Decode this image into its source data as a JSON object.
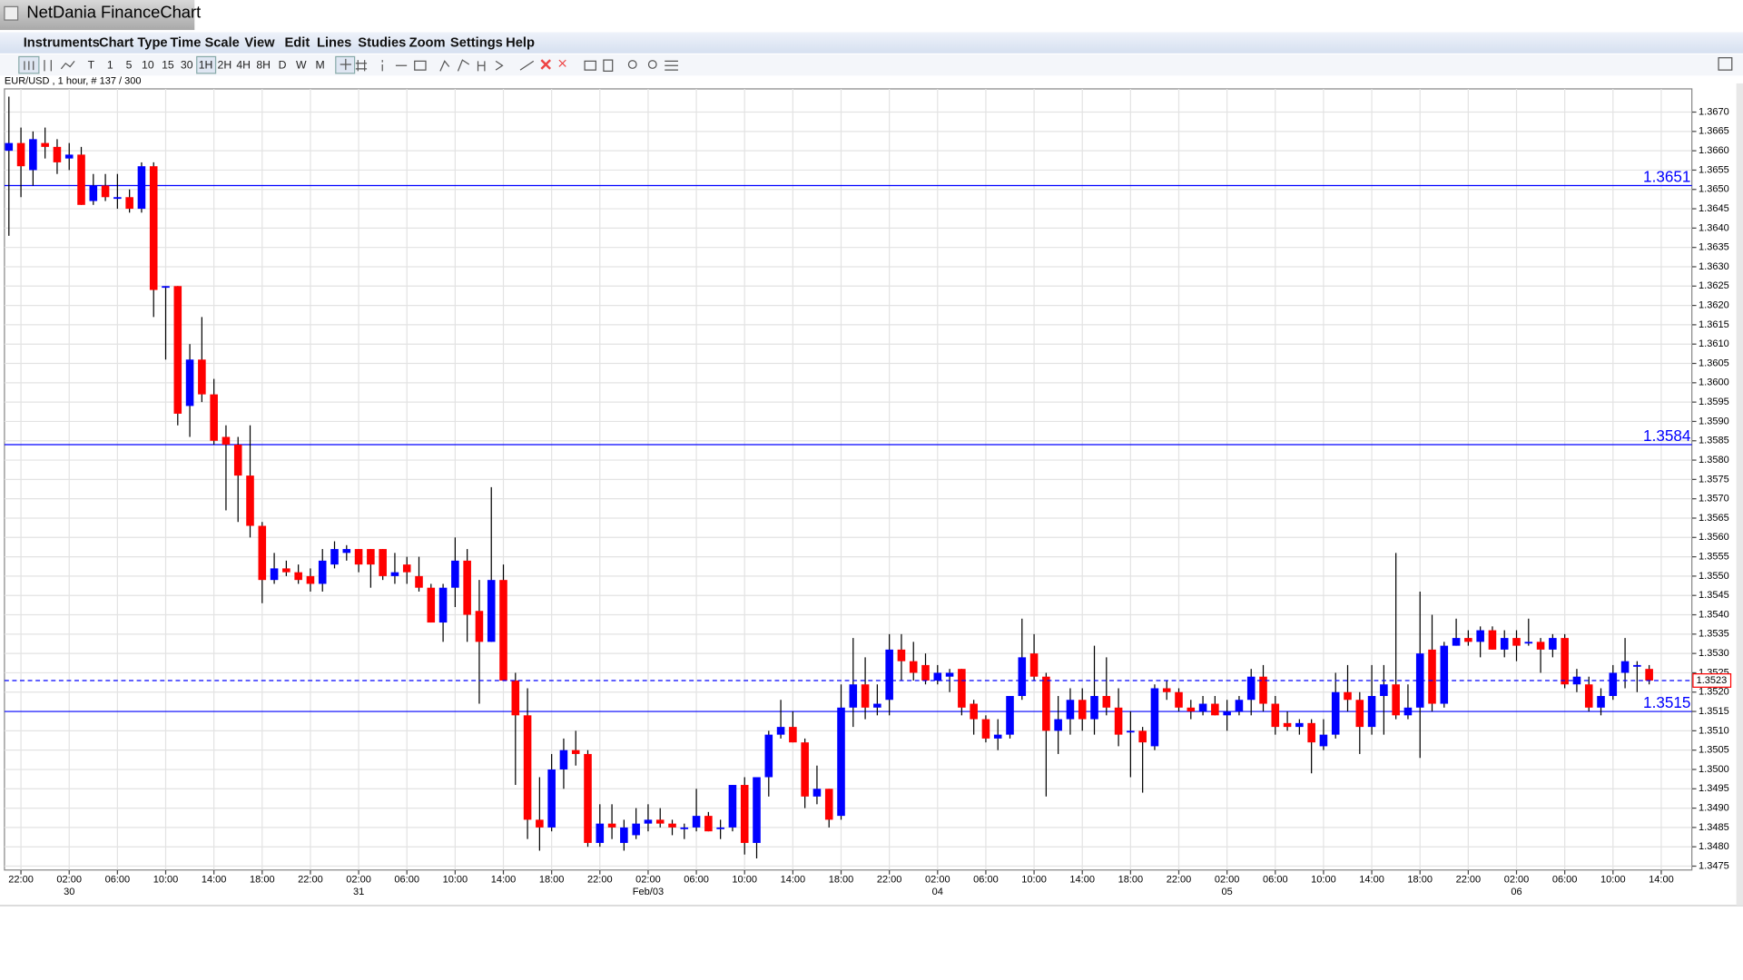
{
  "header": {
    "title": "NetDania FinanceChart"
  },
  "menu": [
    "Instruments",
    "Chart Type",
    "Time Scale",
    "View",
    "Edit",
    "Lines",
    "Studies",
    "Zoom",
    "Settings",
    "Help"
  ],
  "toolbar": {
    "periods": [
      "T",
      "1",
      "5",
      "10",
      "15",
      "30",
      "1H",
      "2H",
      "4H",
      "8H",
      "D",
      "W",
      "M"
    ]
  },
  "chart_data": {
    "type": "candlestick",
    "subtitle": "EUR/USD , 1 hour, # 137 / 300",
    "categories": [
      null,
      "22:00",
      null,
      null,
      null,
      "02:00",
      null,
      null,
      null,
      "06:00",
      null,
      null,
      null,
      "10:00",
      null,
      null,
      null,
      "14:00",
      null,
      null,
      null,
      "18:00",
      null,
      null,
      null,
      "22:00",
      null,
      null,
      null,
      "02:00",
      null,
      null,
      null,
      "06:00",
      null,
      null,
      null,
      "10:00",
      null,
      null,
      null,
      "14:00",
      null,
      null,
      null,
      "18:00",
      null,
      null,
      null,
      "22:00",
      null,
      null,
      null,
      "02:00",
      null,
      null,
      null,
      "06:00",
      null,
      null,
      null,
      "10:00",
      null,
      null,
      null,
      "14:00",
      null,
      null,
      null,
      "18:00",
      null,
      null,
      null,
      "22:00",
      null,
      null,
      null,
      "02:00",
      null,
      null,
      null,
      "06:00",
      null,
      null,
      null,
      "10:00",
      null,
      null,
      null,
      "14:00",
      null,
      null,
      null,
      "18:00",
      null,
      null,
      null,
      "22:00",
      null,
      null,
      null,
      "02:00",
      null,
      null,
      null,
      "06:00",
      null,
      null,
      null,
      "10:00",
      null,
      null,
      null,
      "14:00",
      null,
      null,
      null,
      "18:00",
      null,
      null,
      null,
      "22:00",
      null,
      null,
      null,
      "02:00",
      null,
      null,
      null,
      "06:00",
      null,
      null,
      null,
      "10:00",
      null,
      null,
      null,
      "14:00"
    ],
    "date_labels": [
      null,
      null,
      null,
      null,
      null,
      "30",
      null,
      null,
      null,
      null,
      null,
      null,
      null,
      null,
      null,
      null,
      null,
      null,
      null,
      null,
      null,
      null,
      null,
      null,
      null,
      null,
      null,
      null,
      null,
      "31",
      null,
      null,
      null,
      null,
      null,
      null,
      null,
      null,
      null,
      null,
      null,
      null,
      null,
      null,
      null,
      null,
      null,
      null,
      null,
      null,
      null,
      null,
      null,
      "Feb/03",
      null,
      null,
      null,
      null,
      null,
      null,
      null,
      null,
      null,
      null,
      null,
      null,
      null,
      null,
      null,
      null,
      null,
      null,
      null,
      null,
      null,
      null,
      null,
      "04",
      null,
      null,
      null,
      null,
      null,
      null,
      null,
      null,
      null,
      null,
      null,
      null,
      null,
      null,
      null,
      null,
      null,
      null,
      null,
      null,
      null,
      null,
      null,
      "05",
      null,
      null,
      null,
      null,
      null,
      null,
      null,
      null,
      null,
      null,
      null,
      null,
      null,
      null,
      null,
      null,
      null,
      null,
      null,
      null,
      null,
      null,
      null,
      "06",
      null,
      null,
      null,
      null,
      null,
      null,
      null,
      null,
      null,
      null,
      null,
      null
    ],
    "open": [
      1.366,
      1.3662,
      1.3655,
      1.3662,
      1.3661,
      1.3658,
      1.3659,
      1.3647,
      1.3651,
      1.3648,
      1.3648,
      1.3645,
      1.3656,
      1.3625,
      1.3625,
      1.3594,
      1.3606,
      1.3597,
      1.3586,
      1.3584,
      1.3576,
      1.3563,
      1.3549,
      1.3552,
      1.3551,
      1.355,
      1.3548,
      1.3553,
      1.3556,
      1.3557,
      1.3557,
      1.3557,
      1.355,
      1.3553,
      1.355,
      1.3547,
      1.3538,
      1.3547,
      1.3554,
      1.3541,
      1.3533,
      1.3549,
      1.3523,
      1.3514,
      1.3487,
      1.3485,
      1.35,
      1.3505,
      1.3504,
      1.3481,
      1.3486,
      1.3481,
      1.3483,
      1.3486,
      1.3487,
      1.3486,
      1.3485,
      1.3485,
      1.3488,
      1.3485,
      1.3485,
      1.3496,
      1.3481,
      1.3498,
      1.3509,
      1.3511,
      1.3507,
      1.3493,
      1.3495,
      1.3488,
      1.3516,
      1.3522,
      1.3516,
      1.3518,
      1.3531,
      1.3528,
      1.3527,
      1.3523,
      1.3524,
      1.3526,
      1.3517,
      1.3513,
      1.3508,
      1.3509,
      1.3519,
      1.353,
      1.3524,
      1.351,
      1.3513,
      1.3518,
      1.3513,
      1.3519,
      1.3516,
      1.351,
      1.351,
      1.3506,
      1.3521,
      1.352,
      1.3516,
      1.3515,
      1.3517,
      1.3514,
      1.3515,
      1.3518,
      1.3524,
      1.3517,
      1.3512,
      1.3511,
      1.3512,
      1.3506,
      1.3509,
      1.352,
      1.3518,
      1.3511,
      1.3519,
      1.3522,
      1.3514,
      1.3516,
      1.3531,
      1.3517,
      1.3532,
      1.3534,
      1.3533,
      1.3536,
      1.3531,
      1.3534,
      1.3533,
      1.3533,
      1.3531,
      1.3534,
      1.3522,
      1.3522,
      1.3516,
      1.3519,
      1.3525,
      1.3527,
      1.3526,
      null
    ],
    "high": [
      1.3674,
      1.3666,
      1.3665,
      1.3666,
      1.3663,
      1.3662,
      1.3661,
      1.3654,
      1.3654,
      1.3654,
      1.365,
      1.3657,
      1.3657,
      1.3625,
      1.3625,
      1.361,
      1.3617,
      1.3601,
      1.3589,
      1.3586,
      1.3589,
      1.3564,
      1.3556,
      1.3554,
      1.3553,
      1.3552,
      1.3557,
      1.3559,
      1.3558,
      1.3557,
      1.3557,
      1.3557,
      1.3556,
      1.3555,
      1.3555,
      1.3548,
      1.3548,
      1.356,
      1.3557,
      1.3549,
      1.3573,
      1.3553,
      1.3525,
      1.3521,
      1.3498,
      1.3504,
      1.3508,
      1.351,
      1.3505,
      1.3491,
      1.3491,
      1.3487,
      1.349,
      1.3491,
      1.349,
      1.3487,
      1.3486,
      1.3495,
      1.3489,
      1.3487,
      1.3496,
      1.3498,
      1.3498,
      1.351,
      1.3518,
      1.3515,
      1.3508,
      1.3501,
      1.3495,
      1.3522,
      1.3534,
      1.3529,
      1.3522,
      1.3535,
      1.3535,
      1.3533,
      1.353,
      1.3527,
      1.3526,
      1.3526,
      1.3518,
      1.3514,
      1.3513,
      1.3519,
      1.3539,
      1.3535,
      1.3525,
      1.3519,
      1.3521,
      1.3521,
      1.3532,
      1.3529,
      1.3521,
      1.3515,
      1.3511,
      1.3522,
      1.3523,
      1.3521,
      1.3518,
      1.3519,
      1.3519,
      1.3518,
      1.3519,
      1.3526,
      1.3527,
      1.3519,
      1.3515,
      1.3513,
      1.3513,
      1.3513,
      1.3525,
      1.3527,
      1.352,
      1.3527,
      1.3527,
      1.3556,
      1.3522,
      1.3546,
      1.354,
      1.3533,
      1.3539,
      1.3536,
      1.3537,
      1.3537,
      1.3536,
      1.3536,
      1.3539,
      1.3534,
      1.3535,
      1.3535,
      1.3526,
      1.3524,
      1.3521,
      1.3527,
      1.3534,
      1.3528,
      1.3527,
      null
    ],
    "low": [
      1.3638,
      1.3648,
      1.3651,
      1.3658,
      1.3654,
      1.3655,
      1.3646,
      1.3646,
      1.3647,
      1.3645,
      1.3644,
      1.3644,
      1.3617,
      1.3606,
      1.3589,
      1.3586,
      1.3595,
      1.3584,
      1.3567,
      1.3564,
      1.356,
      1.3543,
      1.3548,
      1.355,
      1.3548,
      1.3546,
      1.3546,
      1.3552,
      1.3554,
      1.3551,
      1.3547,
      1.3549,
      1.3548,
      1.3548,
      1.3546,
      1.3538,
      1.3533,
      1.3542,
      1.3533,
      1.3517,
      1.3533,
      1.3523,
      1.3496,
      1.3482,
      1.3479,
      1.3484,
      1.3495,
      1.3501,
      1.348,
      1.348,
      1.3482,
      1.3479,
      1.3482,
      1.3484,
      1.3485,
      1.3483,
      1.3482,
      1.3484,
      1.3484,
      1.3482,
      1.3484,
      1.3478,
      1.3477,
      1.3493,
      1.3508,
      1.3507,
      1.349,
      1.3491,
      1.3485,
      1.3487,
      1.3511,
      1.3513,
      1.3514,
      1.3514,
      1.3523,
      1.3523,
      1.3522,
      1.3522,
      1.352,
      1.3514,
      1.3509,
      1.3507,
      1.3505,
      1.3508,
      1.3518,
      1.3523,
      1.3493,
      1.3504,
      1.3509,
      1.351,
      1.3509,
      1.3514,
      1.3506,
      1.3498,
      1.3494,
      1.3505,
      1.3518,
      1.3515,
      1.3513,
      1.3514,
      1.3514,
      1.351,
      1.3514,
      1.3514,
      1.3515,
      1.3509,
      1.351,
      1.3509,
      1.3499,
      1.3505,
      1.3508,
      1.3515,
      1.3504,
      1.3509,
      1.3509,
      1.3513,
      1.3513,
      1.3503,
      1.3515,
      1.3516,
      1.3532,
      1.3532,
      1.3529,
      1.3531,
      1.3529,
      1.3528,
      1.3532,
      1.3525,
      1.3529,
      1.3521,
      1.352,
      1.3515,
      1.3514,
      1.3518,
      1.3521,
      1.352,
      1.3522,
      null
    ],
    "close": [
      1.3662,
      1.3656,
      1.3663,
      1.3661,
      1.3657,
      1.3659,
      1.3646,
      1.3651,
      1.3648,
      1.3648,
      1.3645,
      1.3656,
      1.3624,
      1.3625,
      1.3592,
      1.3606,
      1.3597,
      1.3585,
      1.3584,
      1.3576,
      1.3563,
      1.3549,
      1.3552,
      1.3551,
      1.3549,
      1.3548,
      1.3554,
      1.3557,
      1.3557,
      1.3553,
      1.3553,
      1.355,
      1.3551,
      1.3551,
      1.3547,
      1.3538,
      1.3547,
      1.3554,
      1.354,
      1.3533,
      1.3549,
      1.3523,
      1.3514,
      1.3487,
      1.3485,
      1.35,
      1.3505,
      1.3504,
      1.3481,
      1.3486,
      1.3485,
      1.3485,
      1.3486,
      1.3487,
      1.3486,
      1.3485,
      1.3485,
      1.3488,
      1.3484,
      1.3485,
      1.3496,
      1.3481,
      1.3498,
      1.3509,
      1.3511,
      1.3507,
      1.3493,
      1.3495,
      1.3487,
      1.3516,
      1.3522,
      1.3516,
      1.3517,
      1.3531,
      1.3528,
      1.3525,
      1.3523,
      1.3525,
      1.3525,
      1.3516,
      1.3513,
      1.3508,
      1.3509,
      1.3519,
      1.3529,
      1.3524,
      1.351,
      1.3513,
      1.3518,
      1.3513,
      1.3519,
      1.3516,
      1.3509,
      1.351,
      1.3507,
      1.3521,
      1.352,
      1.3516,
      1.3515,
      1.3517,
      1.3514,
      1.3515,
      1.3518,
      1.3524,
      1.3517,
      1.3511,
      1.3511,
      1.3512,
      1.3507,
      1.3509,
      1.352,
      1.3518,
      1.3511,
      1.3519,
      1.3522,
      1.3514,
      1.3516,
      1.353,
      1.3517,
      1.3532,
      1.3534,
      1.3533,
      1.3536,
      1.3531,
      1.3534,
      1.3532,
      1.3533,
      1.3531,
      1.3534,
      1.3522,
      1.3524,
      1.3516,
      1.3519,
      1.3525,
      1.3528,
      1.3527,
      1.3523,
      null
    ],
    "up_color": "#0000ff",
    "down_color": "#ff0000",
    "ylim": [
      1.3474,
      1.3676
    ],
    "yticks": [
      1.3475,
      {
        "value": 1.348,
        "label": "1.3480"
      },
      1.3485,
      {
        "value": 1.349,
        "label": "1.3490"
      },
      1.3495,
      {
        "value": 1.35,
        "label": "1.3500"
      },
      1.3505,
      {
        "value": 1.351,
        "label": "1.3510"
      },
      1.3515,
      {
        "value": 1.352,
        "label": "1.3520"
      },
      1.3525,
      {
        "value": 1.353,
        "label": "1.3530"
      },
      1.3535,
      {
        "value": 1.354,
        "label": "1.3540"
      },
      1.3545,
      {
        "value": 1.355,
        "label": "1.3550"
      },
      1.3555,
      {
        "value": 1.356,
        "label": "1.3560"
      },
      1.3565,
      {
        "value": 1.357,
        "label": "1.3570"
      },
      1.3575,
      {
        "value": 1.358,
        "label": "1.3580"
      },
      1.3585,
      {
        "value": 1.359,
        "label": "1.3590"
      },
      1.3595,
      {
        "value": 1.36,
        "label": "1.3600"
      },
      1.3605,
      {
        "value": 1.361,
        "label": "1.3610"
      },
      1.3615,
      {
        "value": 1.362,
        "label": "1.3620"
      },
      1.3625,
      {
        "value": 1.363,
        "label": "1.3630"
      },
      1.3635,
      {
        "value": 1.364,
        "label": "1.3640"
      },
      1.3645,
      {
        "value": 1.365,
        "label": "1.3650"
      },
      1.3655,
      {
        "value": 1.366,
        "label": "1.3660"
      },
      1.3665,
      {
        "value": 1.367,
        "label": "1.3670"
      }
    ],
    "grid": true,
    "hlines": [
      1.3651,
      1.3584,
      1.3515
    ],
    "hline_color": "#0000ff",
    "last_price": 1.3523
  }
}
